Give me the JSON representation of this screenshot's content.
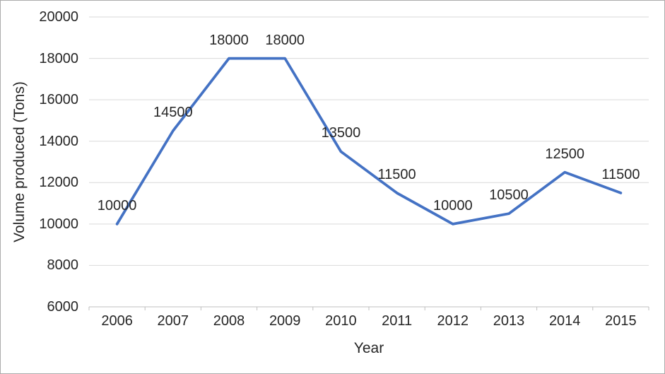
{
  "chart_data": {
    "type": "line",
    "xlabel": "Year",
    "ylabel": "Volume produced (Tons)",
    "categories": [
      "2006",
      "2007",
      "2008",
      "2009",
      "2010",
      "2011",
      "2012",
      "2013",
      "2014",
      "2015"
    ],
    "values": [
      10000,
      14500,
      18000,
      18000,
      13500,
      11500,
      10000,
      10500,
      12500,
      11500
    ],
    "data_labels": [
      "10000",
      "14500",
      "18000",
      "18000",
      "13500",
      "11500",
      "10000",
      "10500",
      "12500",
      "11500"
    ],
    "x_tick_labels": [
      "2006",
      "2007",
      "2008",
      "2009",
      "2010",
      "2011",
      "2012",
      "2013",
      "2014",
      "2015"
    ],
    "y_tick_labels": [
      "20000",
      "18000",
      "16000",
      "14000",
      "12000",
      "10000",
      "8000",
      "6000"
    ],
    "ylim": [
      6000,
      20000
    ],
    "y_step": 2000,
    "grid": true,
    "legend": "none",
    "line_color": "#4472C4",
    "gridline_color": "#D9D9D9",
    "axis_color": "#BFBFBF",
    "text_color": "#262626"
  }
}
